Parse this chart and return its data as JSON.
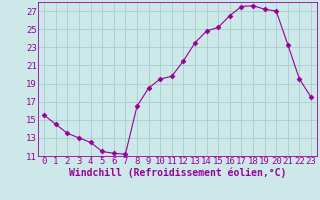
{
  "x": [
    0,
    1,
    2,
    3,
    4,
    5,
    6,
    7,
    8,
    9,
    10,
    11,
    12,
    13,
    14,
    15,
    16,
    17,
    18,
    19,
    20,
    21,
    22,
    23
  ],
  "y": [
    15.5,
    14.5,
    13.5,
    13.0,
    12.5,
    11.5,
    11.3,
    11.2,
    16.5,
    18.5,
    19.5,
    19.8,
    21.5,
    23.5,
    24.8,
    25.2,
    26.5,
    27.5,
    27.6,
    27.2,
    27.0,
    23.3,
    19.5,
    17.5
  ],
  "line_color": "#990099",
  "marker": "D",
  "marker_size": 2.5,
  "bg_color": "#cce8e8",
  "grid_color": "#aacccc",
  "xlabel": "Windchill (Refroidissement éolien,°C)",
  "xlim": [
    -0.5,
    23.5
  ],
  "ylim": [
    11,
    28
  ],
  "yticks": [
    11,
    13,
    15,
    17,
    19,
    21,
    23,
    25,
    27
  ],
  "xticks": [
    0,
    1,
    2,
    3,
    4,
    5,
    6,
    7,
    8,
    9,
    10,
    11,
    12,
    13,
    14,
    15,
    16,
    17,
    18,
    19,
    20,
    21,
    22,
    23
  ],
  "xlabel_fontsize": 7,
  "tick_fontsize": 6.5,
  "tick_color": "#990099",
  "axis_color": "#990099",
  "label_color": "#990099"
}
